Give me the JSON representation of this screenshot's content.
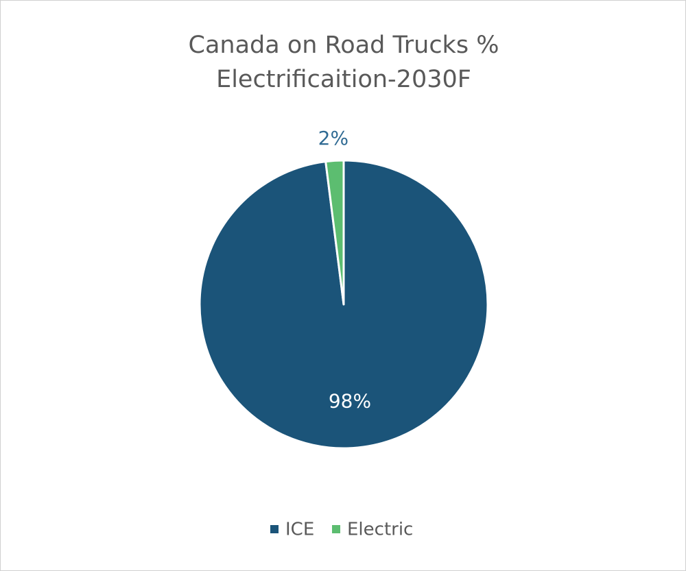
{
  "chart_data": {
    "type": "pie",
    "title": "Canada on Road Trucks % Electrificaition-2030F",
    "categories": [
      "ICE",
      "Electric"
    ],
    "values": [
      98,
      2
    ],
    "value_labels": [
      "98%",
      "2%"
    ],
    "colors": [
      "#1b5479",
      "#5cbd70"
    ],
    "legend": "bottom"
  }
}
